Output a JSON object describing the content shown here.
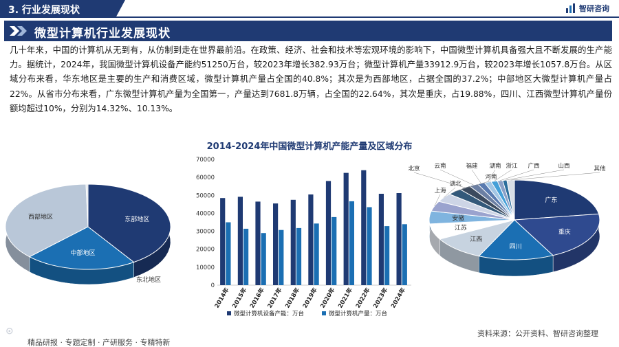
{
  "header": {
    "section_label": "3. 行业发展现状",
    "brand_name": "智研咨询",
    "brand_icon": "bar-logo-icon"
  },
  "title_bar": {
    "title": "微型计算机行业发展现状"
  },
  "paragraph": "几十年来，中国的计算机从无到有，从仿制到走在世界最前沿。在政策、经济、社会和技术等宏观环境的影响下，中国微型计算机具备强大且不断发展的生产能力。据统计，2024年，我国微型计算机设备产能约51250万台，较2023年增长382.93万台；微型计算机产量33912.9万台，较2023年增长1057.8万台。从区域分布来看，华东地区是主要的生产和消费区域，微型计算机产量占全国的40.8%；其次是为西部地区，占据全国的37.2%；中部地区大微型计算机产量占22%。从省市分布来看，广东微型计算机产量为全国第一，产量达到7681.8万辆，占全国的22.64%，其次是重庆，占19.88%，四川、江西微型计算机产量份额均超过10%，分别为14.32%、10.13%。",
  "chart_title": "2014-2024年中国微型计算机产能产量及区域分布",
  "chart_data": [
    {
      "type": "pie",
      "labels": [
        "东部地区",
        "中部地区",
        "西部地区",
        "东北地区"
      ],
      "values": [
        40.8,
        22.0,
        37.2,
        0.4
      ],
      "colors": [
        "#1f3a73",
        "#1b6fb3",
        "#b9c7d8",
        "#dde3ea"
      ]
    },
    {
      "type": "bar",
      "categories": [
        "2014年",
        "2015年",
        "2016年",
        "2017年",
        "2018年",
        "2019年",
        "2020年",
        "2021年",
        "2022年",
        "2023年",
        "2024年"
      ],
      "ylim": [
        0,
        70000
      ],
      "yticks": [
        "0",
        "10000",
        "20000",
        "30000",
        "40000",
        "50000",
        "60000",
        "70000"
      ],
      "series": [
        {
          "name": "微型计算机设备产能：万台",
          "color": "#1f3a73",
          "values": [
            48500,
            49200,
            46500,
            45500,
            47500,
            50500,
            58000,
            62500,
            64000,
            50867,
            51250
          ]
        },
        {
          "name": "微型计算机产量：万台",
          "color": "#1b6fb3",
          "values": [
            35000,
            31400,
            29000,
            30700,
            31800,
            34300,
            37900,
            46700,
            43400,
            32855,
            33913
          ]
        }
      ]
    },
    {
      "type": "pie",
      "labels": [
        "广东",
        "重庆",
        "四川",
        "江西",
        "江苏",
        "安徽",
        "上海",
        "湖北",
        "河南",
        "北京",
        "云南",
        "福建",
        "湖南",
        "浙江",
        "广西",
        "山西",
        "其他"
      ],
      "values": [
        22.64,
        19.88,
        14.32,
        10.13,
        6.4,
        5.2,
        4.1,
        3.5,
        2.8,
        2.2,
        1.7,
        1.4,
        1.3,
        1.2,
        1.0,
        0.8,
        1.42
      ],
      "colors": [
        "#1f3a73",
        "#2f4a8f",
        "#1b6fb3",
        "#c7d3e0",
        "#ffffff",
        "#7fb4df",
        "#9aa3ce",
        "#cdd5e6",
        "#33597a",
        "#3b4a5e",
        "#6b7fa3",
        "#5a7bb0",
        "#a3c6e5",
        "#45a0d8",
        "#8ba0c7",
        "#2c6e9c",
        "#d7dde6"
      ]
    }
  ],
  "footer": {
    "tags": "精品研报 · 专题定制 · 产研服务 · 专精特新",
    "source": "资料来源：公开资料、智研咨询整理"
  }
}
